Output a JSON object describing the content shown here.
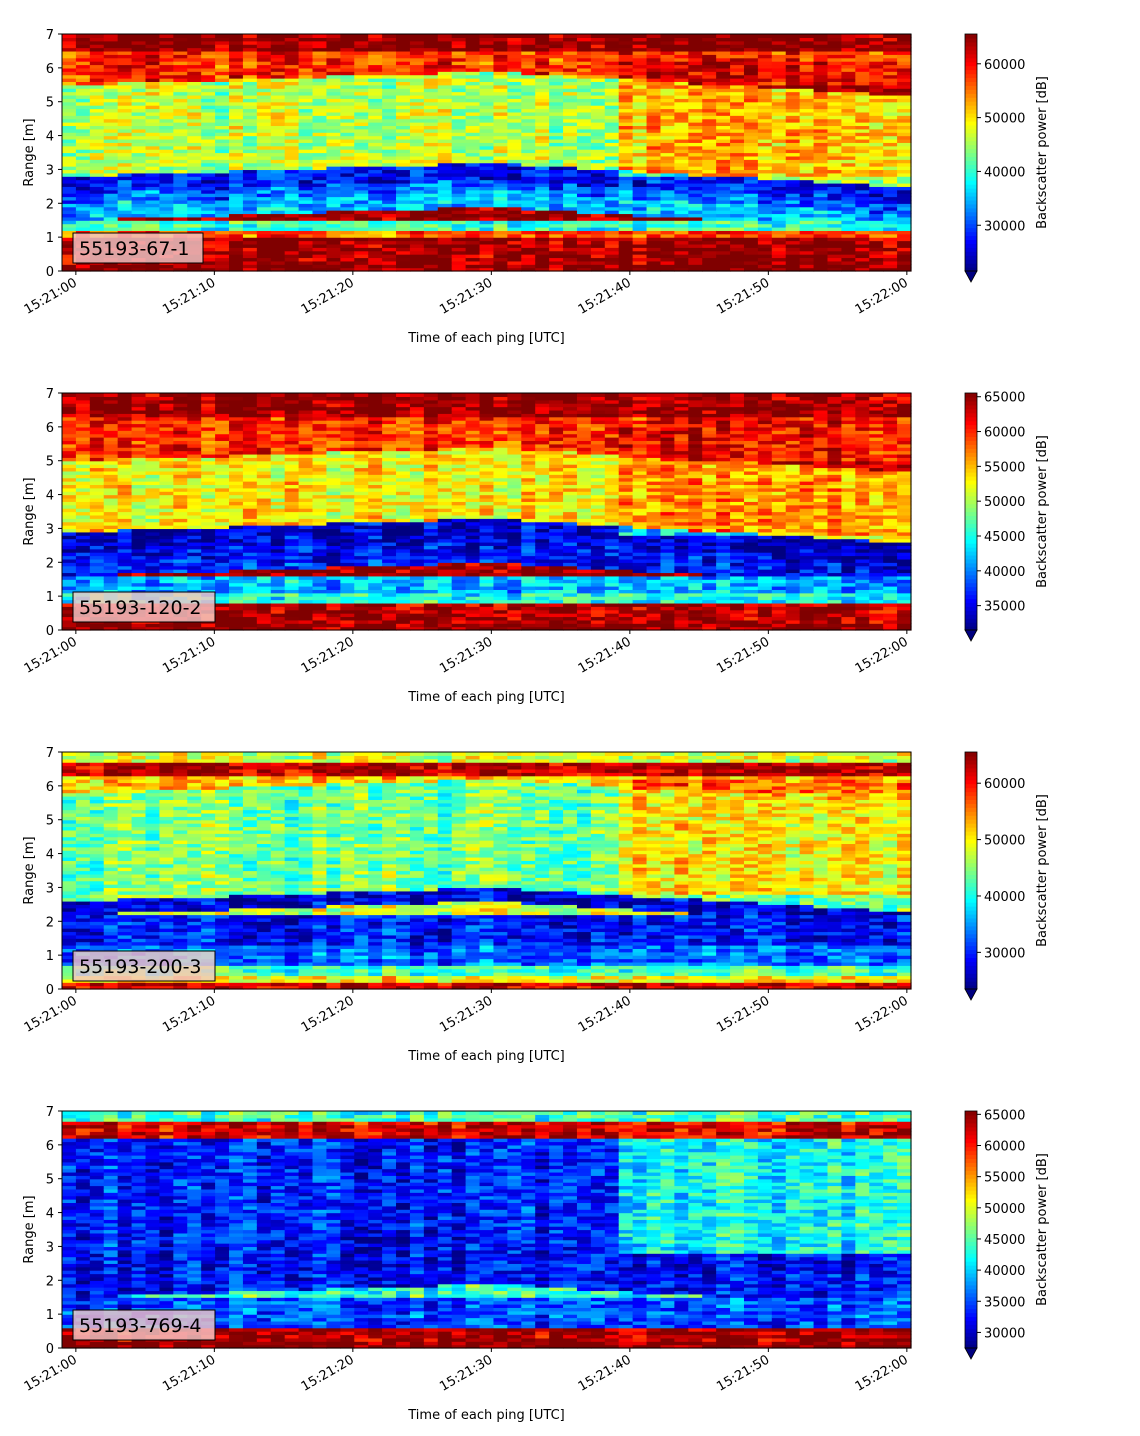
{
  "chart_data": [
    {
      "type": "heatmap",
      "label": "55193-67-1",
      "xlabel": "Time of each ping [UTC]",
      "ylabel": "Range [m]",
      "colorbar_label": "Backscatter power [dB]",
      "colormap": "jet",
      "xlim": [
        "15:20:59",
        "15:22:00.3"
      ],
      "ylim": [
        0,
        7
      ],
      "x_ticks": [
        "15:21:00",
        "15:21:10",
        "15:21:20",
        "15:21:30",
        "15:21:40",
        "15:21:50",
        "15:22:00"
      ],
      "y_ticks": [
        0,
        1,
        2,
        3,
        4,
        5,
        6,
        7
      ],
      "color_range": [
        21500,
        65535
      ],
      "colorbar_ticks": [
        30000,
        40000,
        50000,
        60000
      ],
      "bands": [
        {
          "range": [
            0.0,
            0.2
          ],
          "value": 65535
        },
        {
          "range": [
            0.2,
            1.05
          ],
          "value": 64000
        },
        {
          "range": [
            1.05,
            1.2
          ],
          "value": 56000
        },
        {
          "range": [
            1.2,
            1.5
          ],
          "value": 40000
        },
        {
          "range": [
            1.5,
            2.0
          ],
          "value": 35000
        },
        {
          "range": [
            2.0,
            2.3
          ],
          "value": 31000
        },
        {
          "range": [
            2.3,
            2.8
          ],
          "value": 27000,
          "trend": "layer rises to ~3.0 m near 15:21:30 then descends to ~2.3 m"
        },
        {
          "range": [
            2.8,
            5.5
          ],
          "value": 46000,
          "trend": "increases to ~58000 after 15:21:40"
        },
        {
          "range": [
            5.5,
            6.5
          ],
          "value": 58000
        },
        {
          "range": [
            6.5,
            7.0
          ],
          "value": 65000
        }
      ]
    },
    {
      "type": "heatmap",
      "label": "55193-120-2",
      "xlabel": "Time of each ping [UTC]",
      "ylabel": "Range [m]",
      "colorbar_label": "Backscatter power [dB]",
      "colormap": "jet",
      "xlim": [
        "15:20:59",
        "15:22:00.3"
      ],
      "ylim": [
        0,
        7
      ],
      "x_ticks": [
        "15:21:00",
        "15:21:10",
        "15:21:20",
        "15:21:30",
        "15:21:40",
        "15:21:50",
        "15:22:00"
      ],
      "y_ticks": [
        0,
        1,
        2,
        3,
        4,
        5,
        6,
        7
      ],
      "color_range": [
        31500,
        65535
      ],
      "colorbar_ticks": [
        35000,
        40000,
        45000,
        50000,
        55000,
        60000,
        65000
      ],
      "bands": [
        {
          "range": [
            0.0,
            0.2
          ],
          "value": 65535
        },
        {
          "range": [
            0.2,
            0.8
          ],
          "value": 64000
        },
        {
          "range": [
            0.8,
            1.1
          ],
          "value": 45000
        },
        {
          "range": [
            1.1,
            1.6
          ],
          "value": 42000
        },
        {
          "range": [
            1.6,
            2.3
          ],
          "value": 36000
        },
        {
          "range": [
            2.3,
            2.9
          ],
          "value": 34000,
          "trend": "layer rises to ~3.2 m near 15:21:30 then descends to ~2.2 m"
        },
        {
          "range": [
            2.9,
            5.0
          ],
          "value": 53000,
          "trend": "increases to ~62000 after 15:21:40"
        },
        {
          "range": [
            5.0,
            6.3
          ],
          "value": 60000
        },
        {
          "range": [
            6.3,
            7.0
          ],
          "value": 65000
        }
      ]
    },
    {
      "type": "heatmap",
      "label": "55193-200-3",
      "xlabel": "Time of each ping [UTC]",
      "ylabel": "Range [m]",
      "colorbar_label": "Backscatter power [dB]",
      "colormap": "jet",
      "xlim": [
        "15:20:59",
        "15:22:00.3"
      ],
      "ylim": [
        0,
        7
      ],
      "x_ticks": [
        "15:21:00",
        "15:21:10",
        "15:21:20",
        "15:21:30",
        "15:21:40",
        "15:21:50",
        "15:22:00"
      ],
      "y_ticks": [
        0,
        1,
        2,
        3,
        4,
        5,
        6,
        7
      ],
      "color_range": [
        23500,
        65535
      ],
      "colorbar_ticks": [
        30000,
        40000,
        50000,
        60000
      ],
      "bands": [
        {
          "range": [
            0.0,
            0.2
          ],
          "value": 62000
        },
        {
          "range": [
            0.2,
            0.4
          ],
          "value": 50000
        },
        {
          "range": [
            0.4,
            0.7
          ],
          "value": 42000
        },
        {
          "range": [
            0.7,
            1.3
          ],
          "value": 33000
        },
        {
          "range": [
            1.3,
            2.2
          ],
          "value": 29000
        },
        {
          "range": [
            2.2,
            2.6
          ],
          "value": 27000,
          "trend": "layer rises to ~2.8 m near 15:21:30 then descends to ~2.0 m"
        },
        {
          "range": [
            2.6,
            5.8
          ],
          "value": 44000,
          "trend": "increases to ~50000 after 15:21:40"
        },
        {
          "range": [
            5.8,
            6.3
          ],
          "value": 52000
        },
        {
          "range": [
            6.3,
            6.7
          ],
          "value": 63000
        },
        {
          "range": [
            6.7,
            7.0
          ],
          "value": 48000
        }
      ]
    },
    {
      "type": "heatmap",
      "label": "55193-769-4",
      "xlabel": "Time of each ping [UTC]",
      "ylabel": "Range [m]",
      "colorbar_label": "Backscatter power [dB]",
      "colormap": "jet",
      "xlim": [
        "15:20:59",
        "15:22:00.3"
      ],
      "ylim": [
        0,
        7
      ],
      "x_ticks": [
        "15:21:00",
        "15:21:10",
        "15:21:20",
        "15:21:30",
        "15:21:40",
        "15:21:50",
        "15:22:00"
      ],
      "y_ticks": [
        0,
        1,
        2,
        3,
        4,
        5,
        6,
        7
      ],
      "color_range": [
        27500,
        65535
      ],
      "colorbar_ticks": [
        30000,
        35000,
        40000,
        45000,
        50000,
        55000,
        60000,
        65000
      ],
      "bands": [
        {
          "range": [
            0.0,
            0.25
          ],
          "value": 65535
        },
        {
          "range": [
            0.25,
            0.65
          ],
          "value": 64000
        },
        {
          "range": [
            0.65,
            1.5
          ],
          "value": 35000
        },
        {
          "range": [
            1.5,
            3.0
          ],
          "value": 32000
        },
        {
          "range": [
            3.0,
            6.2
          ],
          "value": 33000,
          "trend": "increases to ~43000 after 15:21:40"
        },
        {
          "range": [
            6.2,
            6.7
          ],
          "value": 62000
        },
        {
          "range": [
            6.7,
            7.0
          ],
          "value": 44000
        }
      ]
    }
  ]
}
